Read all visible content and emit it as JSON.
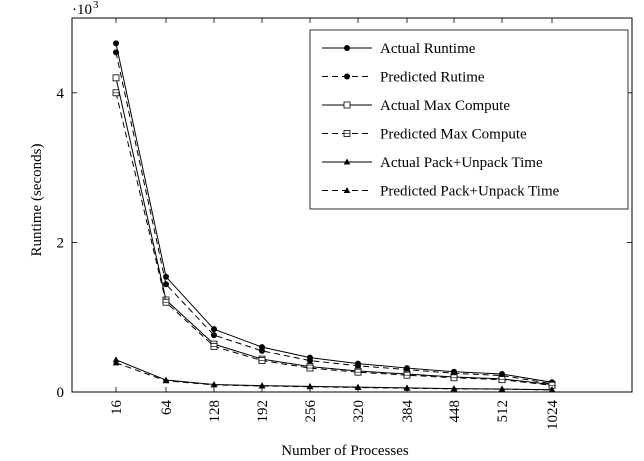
{
  "chart_data": {
    "type": "line",
    "categories": [
      "16",
      "64",
      "128",
      "192",
      "256",
      "320",
      "384",
      "448",
      "512",
      "1024"
    ],
    "xlabel": "Number of Processes",
    "ylabel": "Runtime (seconds)",
    "yscale_label": "·10",
    "yscale_exp": "3",
    "ylim": [
      0,
      5000
    ],
    "yticks": [
      0,
      2000,
      4000
    ],
    "ytick_labels": [
      "0",
      "2",
      "4"
    ],
    "grid": false,
    "legend_position": "top-right",
    "series": [
      {
        "name": "Actual Runtime",
        "style": "solid",
        "marker": "filled-circle",
        "values": [
          4660,
          1540,
          840,
          600,
          460,
          380,
          320,
          270,
          240,
          130
        ]
      },
      {
        "name": "Predicted Rutime",
        "style": "dashed",
        "marker": "filled-circle",
        "values": [
          4540,
          1440,
          760,
          550,
          420,
          350,
          300,
          250,
          220,
          110
        ]
      },
      {
        "name": "Actual Max Compute",
        "style": "solid",
        "marker": "open-square",
        "values": [
          4200,
          1230,
          640,
          440,
          340,
          280,
          240,
          200,
          175,
          100
        ]
      },
      {
        "name": "Predicted Max Compute",
        "style": "dashed",
        "marker": "open-square-cross",
        "values": [
          4000,
          1200,
          610,
          420,
          320,
          265,
          225,
          190,
          165,
          90
        ]
      },
      {
        "name": "Actual Pack+Unpack Time",
        "style": "solid",
        "marker": "filled-triangle",
        "values": [
          430,
          160,
          100,
          85,
          75,
          65,
          55,
          45,
          40,
          30
        ]
      },
      {
        "name": "Predicted Pack+Unpack Time",
        "style": "dashed",
        "marker": "filled-triangle",
        "values": [
          390,
          150,
          95,
          80,
          70,
          60,
          50,
          42,
          38,
          28
        ]
      }
    ]
  }
}
